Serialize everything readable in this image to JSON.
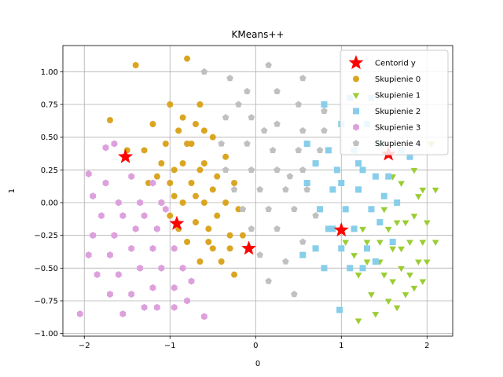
{
  "chart_data": {
    "type": "scatter",
    "title": "KMeans++",
    "xlabel": "0",
    "ylabel": "1",
    "xlim": [
      -2.25,
      2.3
    ],
    "ylim": [
      -1.02,
      1.2
    ],
    "grid": true,
    "legend_position": "top-right",
    "x_ticks": [
      -2,
      -1,
      0,
      1,
      2
    ],
    "x_tick_labels": [
      "−2",
      "−1",
      "0",
      "1",
      "2"
    ],
    "y_ticks": [
      -1.0,
      -0.75,
      -0.5,
      -0.25,
      0.0,
      0.25,
      0.5,
      0.75,
      1.0
    ],
    "y_tick_labels": [
      "−1.00",
      "−0.75",
      "−0.50",
      "−0.25",
      "0.00",
      "0.25",
      "0.50",
      "0.75",
      "1.00"
    ],
    "centroids": {
      "name": "Centorid y",
      "color": "#ff0000",
      "marker": "star",
      "points": [
        [
          -1.52,
          0.35
        ],
        [
          -0.92,
          -0.16
        ],
        [
          -0.08,
          -0.35
        ],
        [
          1.0,
          -0.21
        ],
        [
          1.55,
          0.37
        ]
      ]
    },
    "series": [
      {
        "name": "Skupienie 0",
        "color": "#daa520",
        "marker": "circle",
        "points": [
          [
            -1.4,
            1.05
          ],
          [
            -0.8,
            1.1
          ],
          [
            -1.0,
            0.75
          ],
          [
            -0.65,
            0.75
          ],
          [
            -1.2,
            0.6
          ],
          [
            -1.7,
            0.63
          ],
          [
            -0.9,
            0.55
          ],
          [
            -0.6,
            0.55
          ],
          [
            -1.05,
            0.45
          ],
          [
            -0.75,
            0.45
          ],
          [
            -0.5,
            0.5
          ],
          [
            -1.3,
            0.4
          ],
          [
            -1.1,
            0.3
          ],
          [
            -0.85,
            0.3
          ],
          [
            -0.6,
            0.3
          ],
          [
            -0.35,
            0.35
          ],
          [
            -1.25,
            0.15
          ],
          [
            -1.0,
            0.15
          ],
          [
            -0.75,
            0.15
          ],
          [
            -0.5,
            0.1
          ],
          [
            -0.25,
            0.15
          ],
          [
            -1.1,
            0.0
          ],
          [
            -0.85,
            0.0
          ],
          [
            -0.6,
            0.0
          ],
          [
            -0.35,
            0.0
          ],
          [
            -1.0,
            -0.1
          ],
          [
            -0.7,
            -0.15
          ],
          [
            -0.45,
            -0.1
          ],
          [
            -0.2,
            -0.05
          ],
          [
            -0.8,
            -0.3
          ],
          [
            -0.55,
            -0.3
          ],
          [
            -0.3,
            -0.25
          ],
          [
            -0.65,
            -0.45
          ],
          [
            -0.4,
            -0.45
          ],
          [
            -0.25,
            -0.55
          ],
          [
            -0.85,
            0.65
          ],
          [
            -0.7,
            0.6
          ],
          [
            -0.95,
            0.25
          ],
          [
            -0.65,
            0.25
          ],
          [
            -0.45,
            0.2
          ],
          [
            -0.9,
            -0.2
          ],
          [
            -0.55,
            -0.2
          ],
          [
            -0.15,
            -0.25
          ],
          [
            -1.15,
            0.2
          ],
          [
            -0.8,
            0.45
          ],
          [
            -1.5,
            0.4
          ],
          [
            -0.3,
            -0.35
          ],
          [
            -0.5,
            -0.35
          ],
          [
            -0.7,
            0.05
          ],
          [
            -0.95,
            0.05
          ]
        ]
      },
      {
        "name": "Skupienie 1",
        "color": "#9acd32",
        "marker": "triangle-down",
        "points": [
          [
            2.05,
            0.45
          ],
          [
            1.7,
            0.15
          ],
          [
            1.85,
            -0.1
          ],
          [
            2.0,
            -0.15
          ],
          [
            1.8,
            -0.3
          ],
          [
            1.6,
            -0.35
          ],
          [
            1.9,
            -0.45
          ],
          [
            1.7,
            -0.5
          ],
          [
            1.5,
            -0.55
          ],
          [
            1.95,
            -0.6
          ],
          [
            1.75,
            -0.7
          ],
          [
            1.55,
            -0.75
          ],
          [
            1.3,
            -0.45
          ],
          [
            1.45,
            -0.3
          ],
          [
            1.2,
            -0.55
          ],
          [
            1.35,
            -0.7
          ],
          [
            2.1,
            -0.3
          ],
          [
            1.9,
            0.05
          ],
          [
            1.65,
            -0.15
          ],
          [
            1.8,
            -0.55
          ],
          [
            1.6,
            -0.6
          ],
          [
            1.4,
            -0.85
          ],
          [
            1.2,
            -0.9
          ],
          [
            1.05,
            -0.3
          ],
          [
            1.25,
            -0.2
          ],
          [
            1.5,
            -0.05
          ],
          [
            1.7,
            -0.35
          ],
          [
            1.95,
            -0.3
          ],
          [
            2.0,
            -0.45
          ],
          [
            1.85,
            -0.65
          ],
          [
            1.65,
            -0.8
          ],
          [
            1.45,
            -0.45
          ],
          [
            1.3,
            -0.3
          ],
          [
            1.15,
            -0.4
          ],
          [
            1.55,
            -0.2
          ],
          [
            1.75,
            -0.15
          ],
          [
            1.95,
            0.1
          ],
          [
            1.6,
            0.2
          ],
          [
            1.85,
            0.25
          ],
          [
            2.1,
            0.1
          ]
        ]
      },
      {
        "name": "Skupienie 2",
        "color": "#87ceeb",
        "marker": "square",
        "points": [
          [
            1.1,
            0.8
          ],
          [
            0.8,
            0.75
          ],
          [
            1.3,
            0.6
          ],
          [
            1.0,
            0.6
          ],
          [
            0.85,
            0.4
          ],
          [
            1.15,
            0.4
          ],
          [
            1.45,
            0.45
          ],
          [
            1.7,
            0.4
          ],
          [
            0.7,
            0.3
          ],
          [
            0.95,
            0.25
          ],
          [
            1.25,
            0.25
          ],
          [
            1.55,
            0.2
          ],
          [
            1.8,
            0.35
          ],
          [
            0.6,
            0.15
          ],
          [
            0.9,
            0.1
          ],
          [
            1.2,
            0.1
          ],
          [
            1.5,
            0.05
          ],
          [
            0.75,
            -0.05
          ],
          [
            1.05,
            -0.05
          ],
          [
            1.35,
            -0.05
          ],
          [
            1.65,
            0.0
          ],
          [
            0.85,
            -0.2
          ],
          [
            1.15,
            -0.2
          ],
          [
            1.45,
            -0.15
          ],
          [
            0.7,
            -0.35
          ],
          [
            1.0,
            -0.35
          ],
          [
            1.3,
            -0.35
          ],
          [
            0.55,
            -0.4
          ],
          [
            0.8,
            -0.5
          ],
          [
            1.1,
            -0.5
          ],
          [
            1.4,
            -0.45
          ],
          [
            1.25,
            -0.5
          ],
          [
            0.9,
            -0.2
          ],
          [
            1.6,
            -0.3
          ],
          [
            0.98,
            -0.82
          ],
          [
            1.35,
            0.8
          ],
          [
            0.6,
            0.45
          ],
          [
            1.2,
            0.3
          ],
          [
            1.0,
            0.15
          ],
          [
            1.4,
            0.2
          ]
        ]
      },
      {
        "name": "Skupienie 3",
        "color": "#dda0dd",
        "marker": "hexagon",
        "points": [
          [
            -1.75,
            0.42
          ],
          [
            -1.65,
            0.45
          ],
          [
            -1.95,
            0.22
          ],
          [
            -1.75,
            0.15
          ],
          [
            -1.45,
            0.2
          ],
          [
            -1.2,
            0.15
          ],
          [
            -1.9,
            0.05
          ],
          [
            -1.6,
            0.0
          ],
          [
            -1.35,
            0.0
          ],
          [
            -1.1,
            0.0
          ],
          [
            -1.8,
            -0.1
          ],
          [
            -1.55,
            -0.1
          ],
          [
            -1.3,
            -0.1
          ],
          [
            -1.05,
            -0.05
          ],
          [
            -1.9,
            -0.25
          ],
          [
            -1.65,
            -0.25
          ],
          [
            -1.4,
            -0.2
          ],
          [
            -1.15,
            -0.2
          ],
          [
            -1.95,
            -0.4
          ],
          [
            -1.7,
            -0.4
          ],
          [
            -1.45,
            -0.35
          ],
          [
            -1.2,
            -0.35
          ],
          [
            -0.95,
            -0.35
          ],
          [
            -1.85,
            -0.55
          ],
          [
            -1.6,
            -0.55
          ],
          [
            -1.35,
            -0.5
          ],
          [
            -1.1,
            -0.5
          ],
          [
            -0.85,
            -0.5
          ],
          [
            -1.7,
            -0.7
          ],
          [
            -1.45,
            -0.7
          ],
          [
            -1.2,
            -0.65
          ],
          [
            -0.95,
            -0.65
          ],
          [
            -0.75,
            -0.6
          ],
          [
            -1.55,
            -0.85
          ],
          [
            -1.3,
            -0.8
          ],
          [
            -0.6,
            -0.87
          ],
          [
            -0.95,
            -0.8
          ],
          [
            -2.05,
            -0.85
          ],
          [
            -1.15,
            -0.8
          ],
          [
            -0.8,
            -0.75
          ]
        ]
      },
      {
        "name": "Skupienie 4",
        "color": "#c0c0c0",
        "marker": "pentagon",
        "points": [
          [
            -0.6,
            1.0
          ],
          [
            -0.3,
            0.95
          ],
          [
            0.15,
            1.05
          ],
          [
            0.55,
            0.95
          ],
          [
            0.25,
            0.85
          ],
          [
            -0.1,
            0.85
          ],
          [
            0.5,
            0.75
          ],
          [
            0.8,
            0.7
          ],
          [
            -0.35,
            0.65
          ],
          [
            -0.05,
            0.65
          ],
          [
            0.25,
            0.6
          ],
          [
            0.55,
            0.55
          ],
          [
            0.8,
            0.55
          ],
          [
            -0.4,
            0.45
          ],
          [
            -0.1,
            0.45
          ],
          [
            0.2,
            0.4
          ],
          [
            0.5,
            0.4
          ],
          [
            0.75,
            0.4
          ],
          [
            -0.35,
            0.25
          ],
          [
            -0.05,
            0.25
          ],
          [
            0.25,
            0.25
          ],
          [
            0.55,
            0.25
          ],
          [
            -0.25,
            0.1
          ],
          [
            0.05,
            0.1
          ],
          [
            0.35,
            0.1
          ],
          [
            0.6,
            0.1
          ],
          [
            -0.15,
            -0.05
          ],
          [
            0.15,
            -0.05
          ],
          [
            0.45,
            -0.05
          ],
          [
            0.7,
            -0.1
          ],
          [
            -0.05,
            -0.2
          ],
          [
            0.25,
            -0.2
          ],
          [
            0.55,
            -0.3
          ],
          [
            0.35,
            -0.45
          ],
          [
            0.15,
            -0.6
          ],
          [
            0.45,
            -0.7
          ],
          [
            -0.2,
            0.75
          ],
          [
            0.1,
            0.55
          ],
          [
            0.4,
            0.2
          ],
          [
            0.05,
            -0.4
          ]
        ]
      }
    ]
  }
}
